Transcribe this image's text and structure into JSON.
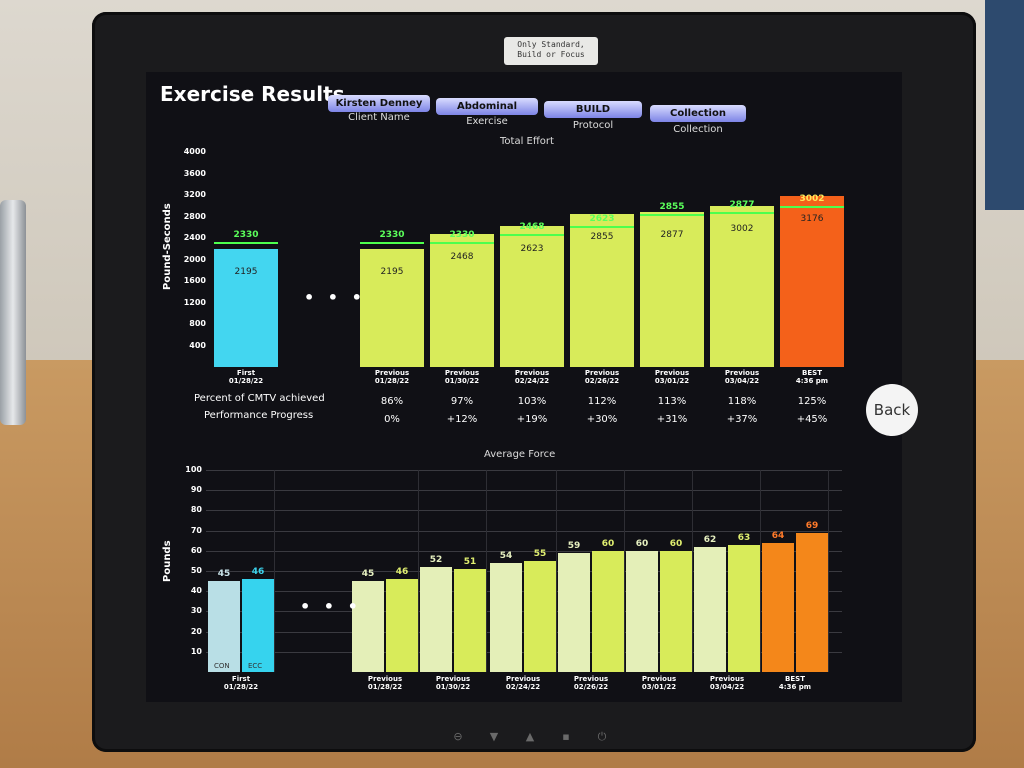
{
  "screen": {
    "title": "Exercise Results",
    "sticker": "Only Standard, Build or Focus",
    "fields": [
      {
        "value": "Kirsten Denney",
        "caption": "Client Name"
      },
      {
        "value": "Abdominal",
        "caption": "Exercise"
      },
      {
        "value": "BUILD",
        "caption": "Protocol"
      },
      {
        "value": "Collection",
        "caption": "Collection"
      }
    ],
    "back_label": "Back",
    "dots": "• • •"
  },
  "effort": {
    "title": "Total Effort",
    "ylabel": "Pound-Seconds",
    "ticks": [
      "4000",
      "3600",
      "3200",
      "2800",
      "2400",
      "2000",
      "1600",
      "1200",
      "800",
      "400"
    ],
    "bars": [
      {
        "label1": "First",
        "label2": "01/28/22",
        "value": 2195,
        "target": 2330,
        "color": "#43d6f0"
      },
      {
        "label1": "Previous",
        "label2": "01/28/22",
        "value": 2195,
        "target": 2330,
        "color": "#d8eb5a"
      },
      {
        "label1": "Previous",
        "label2": "01/30/22",
        "value": 2468,
        "target": 2330,
        "color": "#d8eb5a"
      },
      {
        "label1": "Previous",
        "label2": "02/24/22",
        "value": 2623,
        "target": 2468,
        "color": "#d8eb5a"
      },
      {
        "label1": "Previous",
        "label2": "02/26/22",
        "value": 2855,
        "target": 2623,
        "color": "#d8eb5a"
      },
      {
        "label1": "Previous",
        "label2": "03/01/22",
        "value": 2877,
        "target": 2855,
        "color": "#d8eb5a"
      },
      {
        "label1": "Previous",
        "label2": "03/04/22",
        "value": 3002,
        "target": 2877,
        "color": "#d8eb5a"
      },
      {
        "label1": "BEST",
        "label2": "4:36 pm",
        "value": 3176,
        "target": 3002,
        "color": "#f4611a"
      }
    ],
    "stats": [
      {
        "label": "Percent of CMTV achieved",
        "values": [
          "86%",
          "97%",
          "103%",
          "112%",
          "113%",
          "118%",
          "125%"
        ]
      },
      {
        "label": "Performance Progress",
        "values": [
          "0%",
          "+12%",
          "+19%",
          "+30%",
          "+31%",
          "+37%",
          "+45%"
        ]
      }
    ]
  },
  "force": {
    "title": "Average Force",
    "ylabel": "Pounds",
    "ticks": [
      "100",
      "90",
      "80",
      "70",
      "60",
      "50",
      "40",
      "30",
      "20",
      "10"
    ],
    "con_label": "CON",
    "ecc_label": "ECC",
    "groups": [
      {
        "label1": "First",
        "label2": "01/28/22",
        "con": 45,
        "ecc": 46,
        "con_color": "#b9dfe6",
        "ecc_color": "#36d3ee"
      },
      {
        "label1": "Previous",
        "label2": "01/28/22",
        "con": 45,
        "ecc": 46,
        "con_color": "#e4efb8",
        "ecc_color": "#d8eb5a"
      },
      {
        "label1": "Previous",
        "label2": "01/30/22",
        "con": 52,
        "ecc": 51,
        "con_color": "#e4efb8",
        "ecc_color": "#d8eb5a"
      },
      {
        "label1": "Previous",
        "label2": "02/24/22",
        "con": 54,
        "ecc": 55,
        "con_color": "#e4efb8",
        "ecc_color": "#d8eb5a"
      },
      {
        "label1": "Previous",
        "label2": "02/26/22",
        "con": 59,
        "ecc": 60,
        "con_color": "#e4efb8",
        "ecc_color": "#d8eb5a"
      },
      {
        "label1": "Previous",
        "label2": "03/01/22",
        "con": 60,
        "ecc": 60,
        "con_color": "#e4efb8",
        "ecc_color": "#d8eb5a"
      },
      {
        "label1": "Previous",
        "label2": "03/04/22",
        "con": 62,
        "ecc": 63,
        "con_color": "#e4efb8",
        "ecc_color": "#d8eb5a"
      },
      {
        "label1": "BEST",
        "label2": "4:36 pm",
        "con": 64,
        "ecc": 69,
        "con_color": "#f4871a",
        "ecc_color": "#f4871a"
      }
    ]
  },
  "chart_data": [
    {
      "type": "bar",
      "title": "Total Effort",
      "ylabel": "Pound-Seconds",
      "categories": [
        "First 01/28/22",
        "Previous 01/28/22",
        "Previous 01/30/22",
        "Previous 02/24/22",
        "Previous 02/26/22",
        "Previous 03/01/22",
        "Previous 03/04/22",
        "BEST 4:36 pm"
      ],
      "values": [
        2195,
        2195,
        2468,
        2623,
        2855,
        2877,
        3002,
        3176
      ],
      "targets": [
        2330,
        2330,
        2330,
        2468,
        2623,
        2855,
        2877,
        3002
      ],
      "ylim": [
        0,
        4000
      ]
    },
    {
      "type": "bar",
      "title": "Average Force",
      "ylabel": "Pounds",
      "categories": [
        "First 01/28/22",
        "Previous 01/28/22",
        "Previous 01/30/22",
        "Previous 02/24/22",
        "Previous 02/26/22",
        "Previous 03/01/22",
        "Previous 03/04/22",
        "BEST 4:36 pm"
      ],
      "series": [
        {
          "name": "CON",
          "values": [
            45,
            45,
            52,
            54,
            59,
            60,
            62,
            64
          ]
        },
        {
          "name": "ECC",
          "values": [
            46,
            46,
            51,
            55,
            60,
            60,
            63,
            69
          ]
        }
      ],
      "ylim": [
        0,
        100
      ]
    }
  ]
}
